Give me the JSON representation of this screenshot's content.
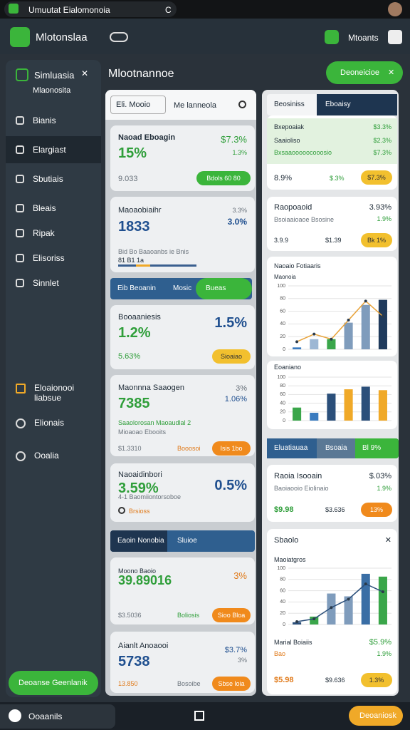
{
  "status_bar": {
    "title": "Umuutat Eialomonoia",
    "indicator": "C"
  },
  "app_bar": {
    "title": "Mlotonslaa",
    "account": "Mtoants"
  },
  "sidebar": {
    "title": "Simluasia",
    "subtitle": "Mlaonosita",
    "items": [
      "Bianis",
      "Elargiast",
      "Sbutiais",
      "Bleais",
      "Ripak",
      "Elisoriss",
      "Sinnlet"
    ],
    "extra_items": [
      "Eloaionooi liabsue",
      "Elionais",
      "Ooalia"
    ],
    "button": "Deoanse Geenlanik"
  },
  "header": {
    "title": "Mlootnannoe",
    "action": "Deoneicioe"
  },
  "left": {
    "search": {
      "filter": "Eli. Mooio",
      "placeholder": "Me lanneola"
    },
    "card1": {
      "title": "Naoad Eboagin",
      "value": "15%",
      "change": "$7.3%",
      "sub": "1.3%",
      "footer": "9.033",
      "button": "Bdols 60 80"
    },
    "card2": {
      "title": "Maoaobiaihr",
      "value": "1833",
      "change": "3.3%",
      "sub": "3.0%",
      "note": "Bid Bo Baaoanbs ie Bnis",
      "progress": "81 B1 1a"
    },
    "tabs1": [
      "Eib Beoanin",
      "Mosic",
      "Bueas"
    ],
    "card3": {
      "title": "Booaaniesis",
      "value": "1.2%",
      "change": "1.5%",
      "footer": "5.63%",
      "button": "Sioaiao"
    },
    "card4": {
      "title": "Maonnna Saaogen",
      "value": "7385",
      "change": "3%",
      "sub": "1.06%",
      "note": "Saaolorosan Maoaudlal 2",
      "note2": "Mioaoao Ebooits",
      "footer": "$1.3310",
      "footer2": "Booosoi",
      "button": "Isis 1bo"
    },
    "card5": {
      "title": "Naoaidinbori",
      "value": "3.59%",
      "change": "0.5%",
      "note": "4-1 Baomiiontorsoboe",
      "footer": "Brsioss"
    },
    "tabs2": [
      "Eaoin Nonobia",
      "Sluioe"
    ],
    "card6": {
      "title": "Moono Baoio",
      "value": "39.89016",
      "change": "3%",
      "footer": "$3.5036",
      "footer2": "Boliosis",
      "button": "Sioo Bloa"
    },
    "card7": {
      "title": "Aianlt Anoaooi",
      "value": "5738",
      "change": "$3.7%",
      "sub": "3%",
      "footer": "13.850",
      "footer2": "Bosoibe",
      "button": "Sbse loia"
    }
  },
  "right": {
    "tabs1": [
      "Beosiniss",
      "Eboaisy"
    ],
    "table": {
      "rows": [
        [
          "Bxepoaiak",
          "$3.3%"
        ],
        [
          "Saaioliso",
          "$2.3%"
        ],
        [
          "Bxsaaooooocooosio",
          "$7.3%"
        ]
      ],
      "footer": [
        "8.9%",
        "$.3%"
      ],
      "button": "$7.3%"
    },
    "card2": {
      "title": "Raopoaoid",
      "value": "3.93%",
      "note": "Bsoiaaioaoe Bsosine",
      "sub": "1.9%",
      "footer": "3.9.9",
      "footer2": "$1.39",
      "button": "Bk 1%"
    },
    "chart1": {
      "title": "Naoaio Fotiaaris",
      "legend": "Maonoia",
      "ylim": [
        0,
        100
      ],
      "yticks": [
        0,
        20,
        40,
        60,
        80,
        100
      ],
      "bars": [
        3,
        16,
        16,
        42,
        70,
        78
      ],
      "colors": [
        "#3a7bbf",
        "#9db7d4",
        "#3aa64a",
        "#7f9cbc",
        "#7f9cbc",
        "#1f3a5c"
      ],
      "line": [
        12,
        24,
        16,
        46,
        76,
        52
      ],
      "line_color": "#e8a33a"
    },
    "chart2": {
      "title": "Eoaniano",
      "ylim": [
        0,
        100
      ],
      "yticks": [
        0,
        20,
        40,
        60,
        80,
        100
      ],
      "bars": [
        30,
        18,
        62,
        72,
        78,
        70
      ],
      "colors": [
        "#3aa64a",
        "#3a7bbf",
        "#2b4f7a",
        "#f0a928",
        "#2b4f7a",
        "#f0a928"
      ]
    },
    "tabs2": [
      "Eluatiauaa",
      "Bsoaia",
      "Bl 9%"
    ],
    "card3": {
      "title": "Raoia Isooain",
      "value": "$.03%",
      "note": "Baoiaooio Eiolinaio",
      "sub": "1.9%",
      "footer": "$9.98",
      "footer2": "$3.636",
      "button": "13%"
    },
    "chart3": {
      "title": "Sbaolo",
      "subtitle": "Maoiatgros",
      "ylim": [
        0,
        100
      ],
      "yticks": [
        0,
        20,
        40,
        60,
        80,
        100
      ],
      "bars": [
        4,
        14,
        55,
        50,
        90,
        85
      ],
      "colors": [
        "#2b4f7a",
        "#3aa64a",
        "#7f9cbc",
        "#7f9cbc",
        "#3a6ea5",
        "#3aa64a"
      ],
      "line": [
        5,
        10,
        30,
        45,
        72,
        58
      ],
      "line_color": "#2b4f7a",
      "footer_title": "Marial Boiaiis",
      "footer_value": "$5.9%",
      "note": "Bao",
      "sub": "1.9%",
      "footer": "$5.98",
      "footer2": "$9.636",
      "button": "1.3%"
    }
  },
  "bottom_bar": {
    "label": "Ooaanils",
    "button": "Deoaniosk"
  }
}
